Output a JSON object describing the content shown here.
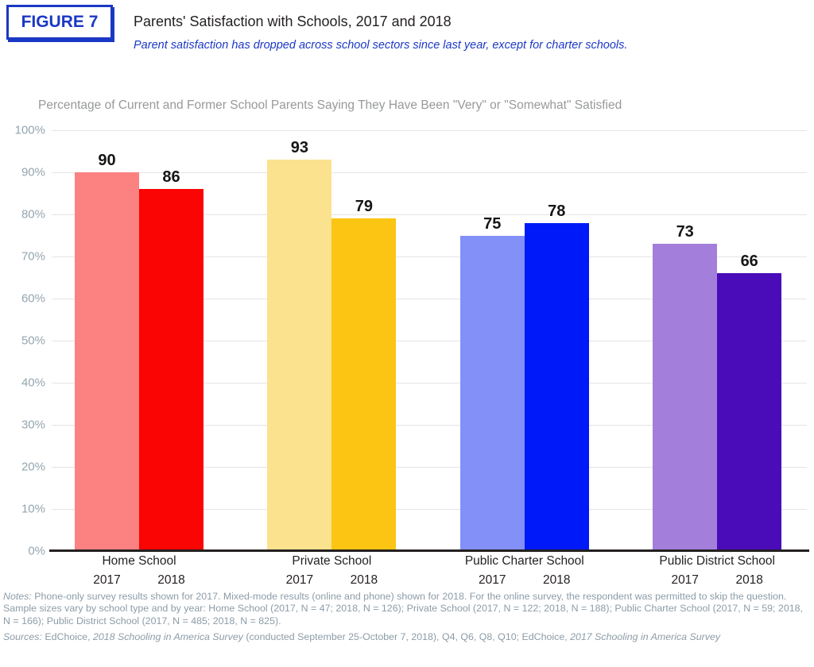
{
  "header": {
    "figure_label": "FIGURE 7",
    "title": "Parents' Satisfaction with Schools, 2017 and 2018",
    "subtitle": "Parent satisfaction has dropped across school sectors since last year, except for charter schools.",
    "accent_color": "#1b38c4"
  },
  "chart_data": {
    "type": "bar",
    "title": "Percentage of Current and Former School Parents Saying They Have Been \"Very\" or \"Somewhat\" Satisfied",
    "categories": [
      "Home School",
      "Private School",
      "Public Charter School",
      "Public District School"
    ],
    "series": [
      {
        "name": "2017",
        "values": [
          90,
          93,
          75,
          73
        ],
        "colors": [
          "#fc8181",
          "#fbe28f",
          "#8290f8",
          "#a37fdb"
        ]
      },
      {
        "name": "2018",
        "values": [
          86,
          79,
          78,
          66
        ],
        "colors": [
          "#fb0404",
          "#fcc513",
          "#0019f8",
          "#4a0cb8"
        ]
      }
    ],
    "ylim": [
      0,
      100
    ],
    "ytick_step": 10,
    "ytick_suffix": "%",
    "grid": true,
    "legend_position": "none",
    "value_labels_shown": true,
    "xlabel": "",
    "ylabel": "",
    "gridline_color": "#e4e4e4",
    "axis_line_color": "#231f20",
    "ytick_label_color": "#94a5af",
    "title_color": "#97999b"
  },
  "footnotes": {
    "notes_segments": [
      {
        "text": "Notes:",
        "italic": true
      },
      {
        "text": " Phone-only survey results shown for 2017. Mixed-mode results (online and phone) shown for 2018. For the online survey, the respondent was permitted to skip the question. Sample sizes vary by school type and by year: Home School (2017, N = 47; 2018, N = 126);  Private School (2017, N = 122; 2018, N = 188); Public Charter School (2017, N = 59; 2018, N = 166); Public District School (2017, N = 485; 2018, N = 825).",
        "italic": false
      }
    ],
    "sources_segments": [
      {
        "text": "Sources:",
        "italic": true
      },
      {
        "text": " EdChoice, ",
        "italic": false
      },
      {
        "text": "2018 Schooling in America Survey",
        "italic": true
      },
      {
        "text": " (conducted September 25-October 7, 2018), Q4, Q6, Q8, Q10; EdChoice, ",
        "italic": false
      },
      {
        "text": "2017 Schooling in America Survey",
        "italic": true
      }
    ]
  }
}
